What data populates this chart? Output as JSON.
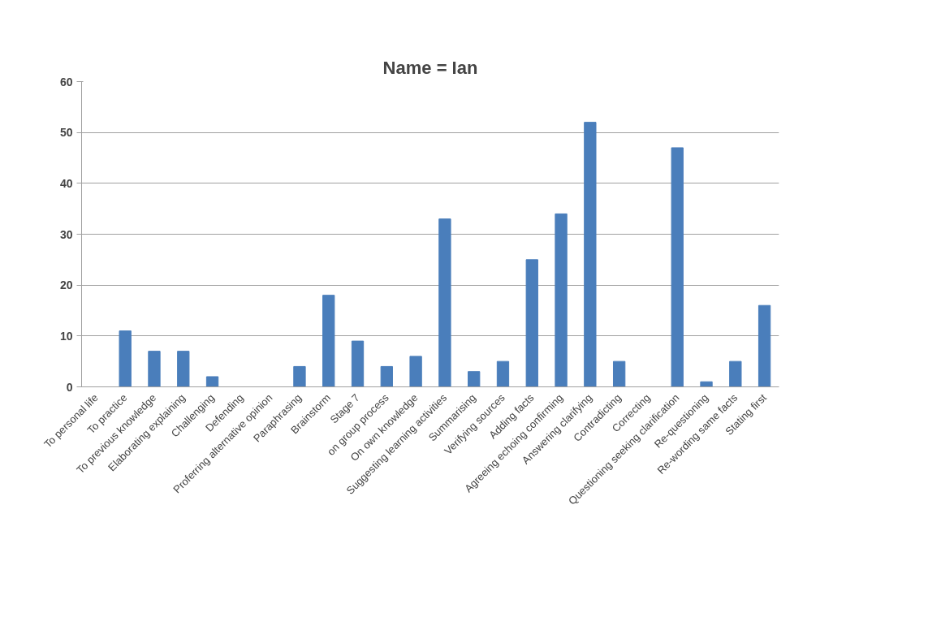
{
  "chart_data": {
    "type": "bar",
    "title": "Name = Ian",
    "categories": [
      "To personal life",
      "To practice",
      "To previous knowledge",
      "Elaborating explaining",
      "Challenging",
      "Defending",
      "Proferring alternative opinion",
      "Paraphrasing",
      "Brainstorm",
      "Stage 7",
      "on group process",
      "On own knowledge",
      "Suggesting learning activities",
      "Summarising",
      "Verifying sources",
      "Adding facts",
      "Agreeing echoing confirming",
      "Answering clarifying",
      "Contradicting",
      "Correcting",
      "Questioning seeking clarification",
      "Re-questioning",
      "Re-wording same facts",
      "Stating first"
    ],
    "values": [
      0,
      11,
      7,
      7,
      2,
      0,
      0,
      4,
      18,
      9,
      4,
      6,
      33,
      3,
      5,
      25,
      34,
      52,
      5,
      0,
      47,
      1,
      5,
      16
    ],
    "color": "#4a7ebb",
    "ylim": [
      0,
      60
    ],
    "yticks": [
      0,
      10,
      20,
      30,
      40,
      50,
      60
    ],
    "grid": "y"
  }
}
